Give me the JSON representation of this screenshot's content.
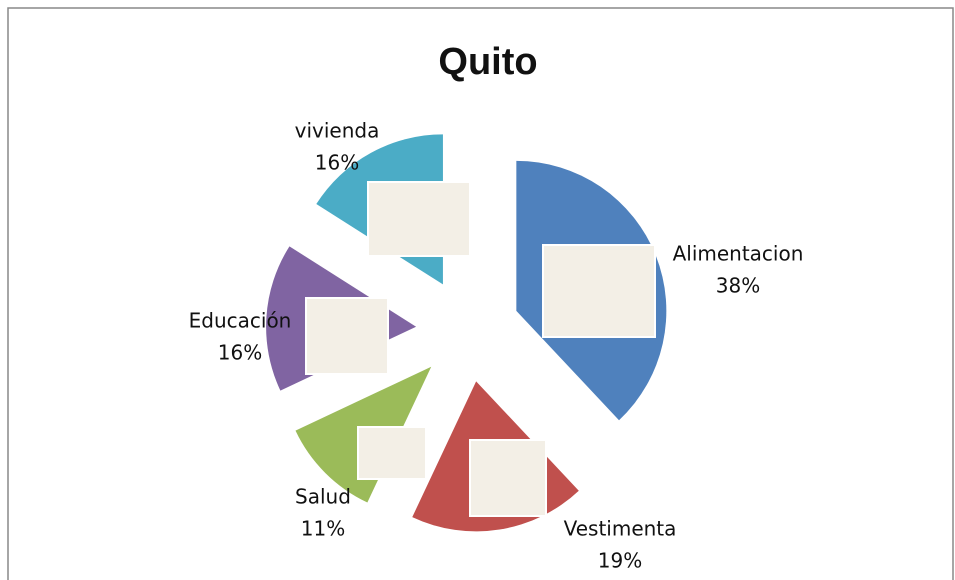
{
  "chart_data": {
    "type": "pie",
    "title": "Quito",
    "categories": [
      "Alimentacion",
      "Vestimenta",
      "Salud",
      "Educación",
      "vivienda"
    ],
    "values": [
      38,
      19,
      11,
      16,
      16
    ],
    "value_labels": [
      "38%",
      "19%",
      "11%",
      "16%",
      "16%"
    ],
    "colors": [
      "#4f81bd",
      "#c0504d",
      "#9bbb59",
      "#8064a2",
      "#4bacc6"
    ]
  }
}
